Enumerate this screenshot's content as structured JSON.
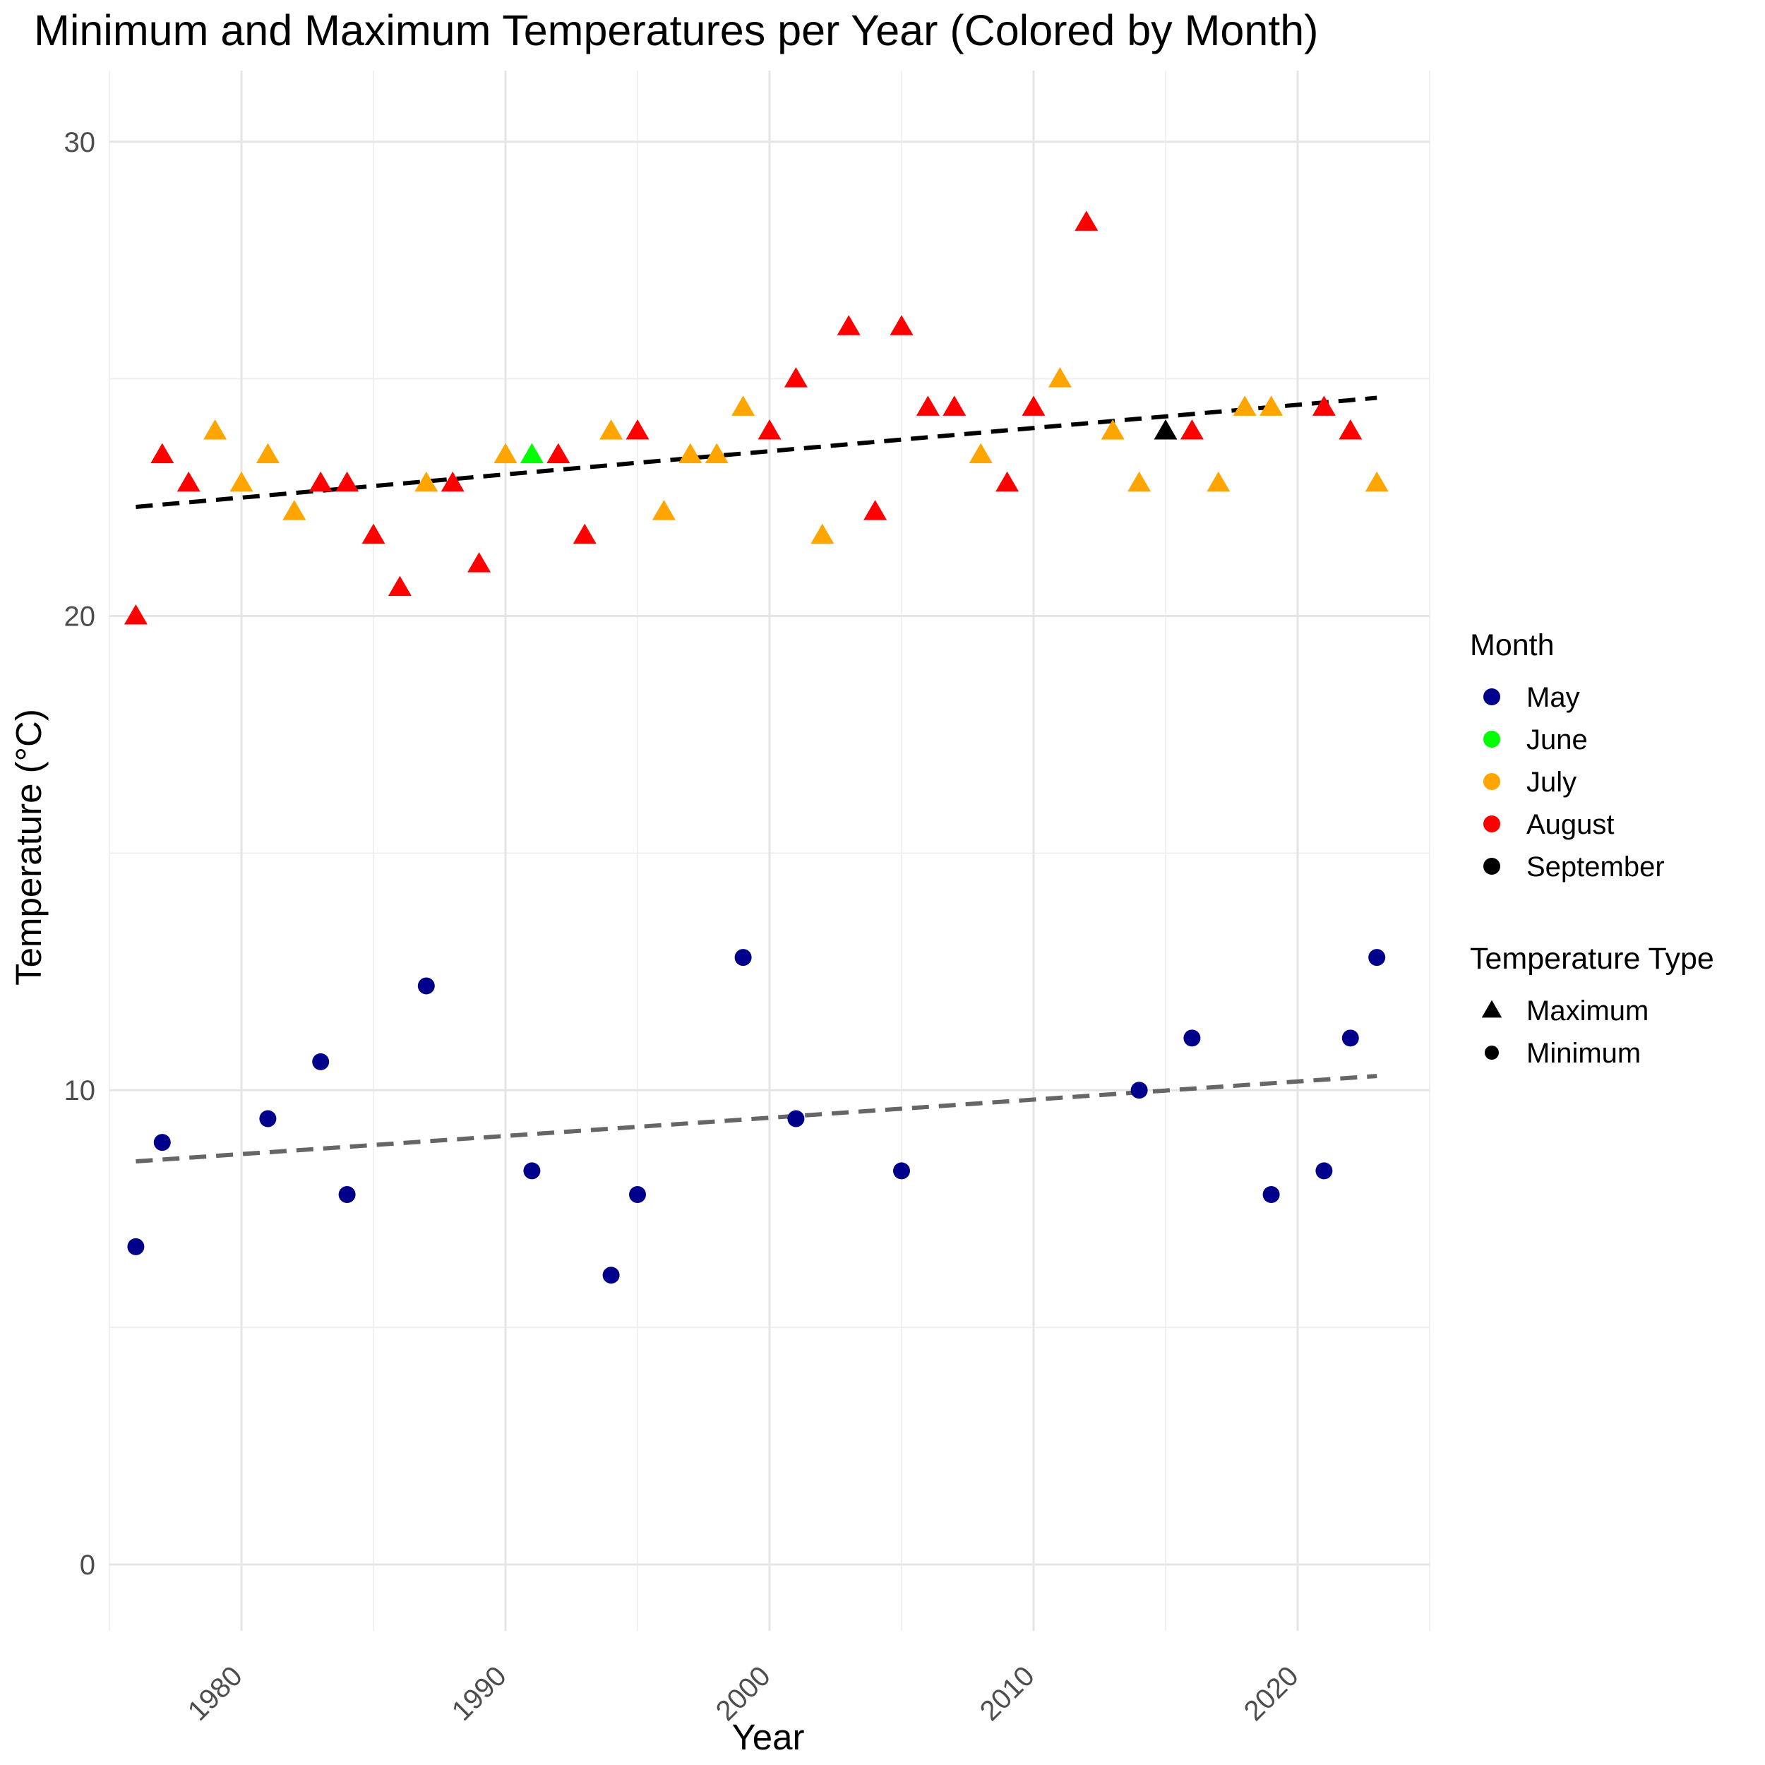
{
  "chart_data": {
    "type": "scatter",
    "title": "Minimum and Maximum Temperatures per Year (Colored by Month)",
    "xlabel": "Year",
    "ylabel": "Temperature (°C)",
    "xlim": [
      1975,
      2025
    ],
    "ylim": [
      -1.4,
      31.5
    ],
    "x_ticks": [
      1980,
      1990,
      2000,
      2010,
      2020
    ],
    "y_ticks": [
      0,
      10,
      20,
      30
    ],
    "grid": true,
    "legend_position": "right",
    "legend": {
      "color_title": "Month",
      "color_entries": [
        {
          "label": "May",
          "color": "#00008b"
        },
        {
          "label": "June",
          "color": "#00ff00"
        },
        {
          "label": "July",
          "color": "#ffa500"
        },
        {
          "label": "August",
          "color": "#ff0000"
        },
        {
          "label": "September",
          "color": "#000000"
        }
      ],
      "shape_title": "Temperature Type",
      "shape_entries": [
        {
          "label": "Maximum",
          "shape": "triangle"
        },
        {
          "label": "Minimum",
          "shape": "circle"
        }
      ]
    },
    "month_colors": {
      "May": "#00008b",
      "June": "#00ff00",
      "July": "#ffa500",
      "August": "#ff0000",
      "September": "#000000"
    },
    "series": [
      {
        "name": "Maximum",
        "shape": "triangle",
        "points": [
          {
            "x": 1976,
            "y": 20.0,
            "month": "August"
          },
          {
            "x": 1977,
            "y": 23.4,
            "month": "August"
          },
          {
            "x": 1978,
            "y": 22.8,
            "month": "August"
          },
          {
            "x": 1979,
            "y": 23.9,
            "month": "July"
          },
          {
            "x": 1980,
            "y": 22.8,
            "month": "July"
          },
          {
            "x": 1981,
            "y": 23.4,
            "month": "July"
          },
          {
            "x": 1982,
            "y": 22.2,
            "month": "July"
          },
          {
            "x": 1983,
            "y": 22.8,
            "month": "August"
          },
          {
            "x": 1984,
            "y": 22.8,
            "month": "August"
          },
          {
            "x": 1985,
            "y": 21.7,
            "month": "August"
          },
          {
            "x": 1986,
            "y": 20.6,
            "month": "August"
          },
          {
            "x": 1987,
            "y": 22.8,
            "month": "July"
          },
          {
            "x": 1988,
            "y": 22.8,
            "month": "August"
          },
          {
            "x": 1989,
            "y": 21.1,
            "month": "August"
          },
          {
            "x": 1990,
            "y": 23.4,
            "month": "July"
          },
          {
            "x": 1991,
            "y": 23.4,
            "month": "June"
          },
          {
            "x": 1992,
            "y": 23.4,
            "month": "August"
          },
          {
            "x": 1993,
            "y": 21.7,
            "month": "August"
          },
          {
            "x": 1994,
            "y": 23.9,
            "month": "July"
          },
          {
            "x": 1995,
            "y": 23.9,
            "month": "August"
          },
          {
            "x": 1996,
            "y": 22.2,
            "month": "July"
          },
          {
            "x": 1997,
            "y": 23.4,
            "month": "July"
          },
          {
            "x": 1998,
            "y": 23.4,
            "month": "July"
          },
          {
            "x": 1999,
            "y": 24.4,
            "month": "July"
          },
          {
            "x": 2000,
            "y": 23.9,
            "month": "August"
          },
          {
            "x": 2001,
            "y": 25.0,
            "month": "August"
          },
          {
            "x": 2002,
            "y": 21.7,
            "month": "July"
          },
          {
            "x": 2003,
            "y": 26.1,
            "month": "August"
          },
          {
            "x": 2004,
            "y": 22.2,
            "month": "August"
          },
          {
            "x": 2005,
            "y": 26.1,
            "month": "August"
          },
          {
            "x": 2006,
            "y": 24.4,
            "month": "August"
          },
          {
            "x": 2007,
            "y": 24.4,
            "month": "August"
          },
          {
            "x": 2008,
            "y": 23.4,
            "month": "July"
          },
          {
            "x": 2009,
            "y": 22.8,
            "month": "August"
          },
          {
            "x": 2010,
            "y": 24.4,
            "month": "August"
          },
          {
            "x": 2011,
            "y": 25.0,
            "month": "July"
          },
          {
            "x": 2012,
            "y": 28.3,
            "month": "August"
          },
          {
            "x": 2013,
            "y": 23.9,
            "month": "July"
          },
          {
            "x": 2014,
            "y": 22.8,
            "month": "July"
          },
          {
            "x": 2015,
            "y": 23.9,
            "month": "September"
          },
          {
            "x": 2016,
            "y": 23.9,
            "month": "August"
          },
          {
            "x": 2017,
            "y": 22.8,
            "month": "July"
          },
          {
            "x": 2018,
            "y": 24.4,
            "month": "July"
          },
          {
            "x": 2019,
            "y": 24.4,
            "month": "July"
          },
          {
            "x": 2021,
            "y": 24.4,
            "month": "August"
          },
          {
            "x": 2022,
            "y": 23.9,
            "month": "August"
          },
          {
            "x": 2023,
            "y": 22.8,
            "month": "July"
          }
        ],
        "trend": {
          "x": [
            1976,
            2023
          ],
          "y": [
            22.3,
            24.6
          ],
          "color": "#000000"
        }
      },
      {
        "name": "Minimum",
        "shape": "circle",
        "points": [
          {
            "x": 1976,
            "y": 6.7,
            "month": "May"
          },
          {
            "x": 1977,
            "y": 8.9,
            "month": "May"
          },
          {
            "x": 1981,
            "y": 9.4,
            "month": "May"
          },
          {
            "x": 1983,
            "y": 10.6,
            "month": "May"
          },
          {
            "x": 1984,
            "y": 7.8,
            "month": "May"
          },
          {
            "x": 1987,
            "y": 12.2,
            "month": "May"
          },
          {
            "x": 1991,
            "y": 8.3,
            "month": "May"
          },
          {
            "x": 1994,
            "y": 6.1,
            "month": "May"
          },
          {
            "x": 1995,
            "y": 7.8,
            "month": "May"
          },
          {
            "x": 1999,
            "y": 12.8,
            "month": "May"
          },
          {
            "x": 2001,
            "y": 9.4,
            "month": "May"
          },
          {
            "x": 2005,
            "y": 8.3,
            "month": "May"
          },
          {
            "x": 2014,
            "y": 10.0,
            "month": "May"
          },
          {
            "x": 2016,
            "y": 11.1,
            "month": "May"
          },
          {
            "x": 2019,
            "y": 7.8,
            "month": "May"
          },
          {
            "x": 2021,
            "y": 8.3,
            "month": "May"
          },
          {
            "x": 2022,
            "y": 11.1,
            "month": "May"
          },
          {
            "x": 2023,
            "y": 12.8,
            "month": "May"
          }
        ],
        "trend": {
          "x": [
            1976,
            2023
          ],
          "y": [
            8.5,
            10.3
          ],
          "color": "#666666"
        }
      }
    ]
  }
}
